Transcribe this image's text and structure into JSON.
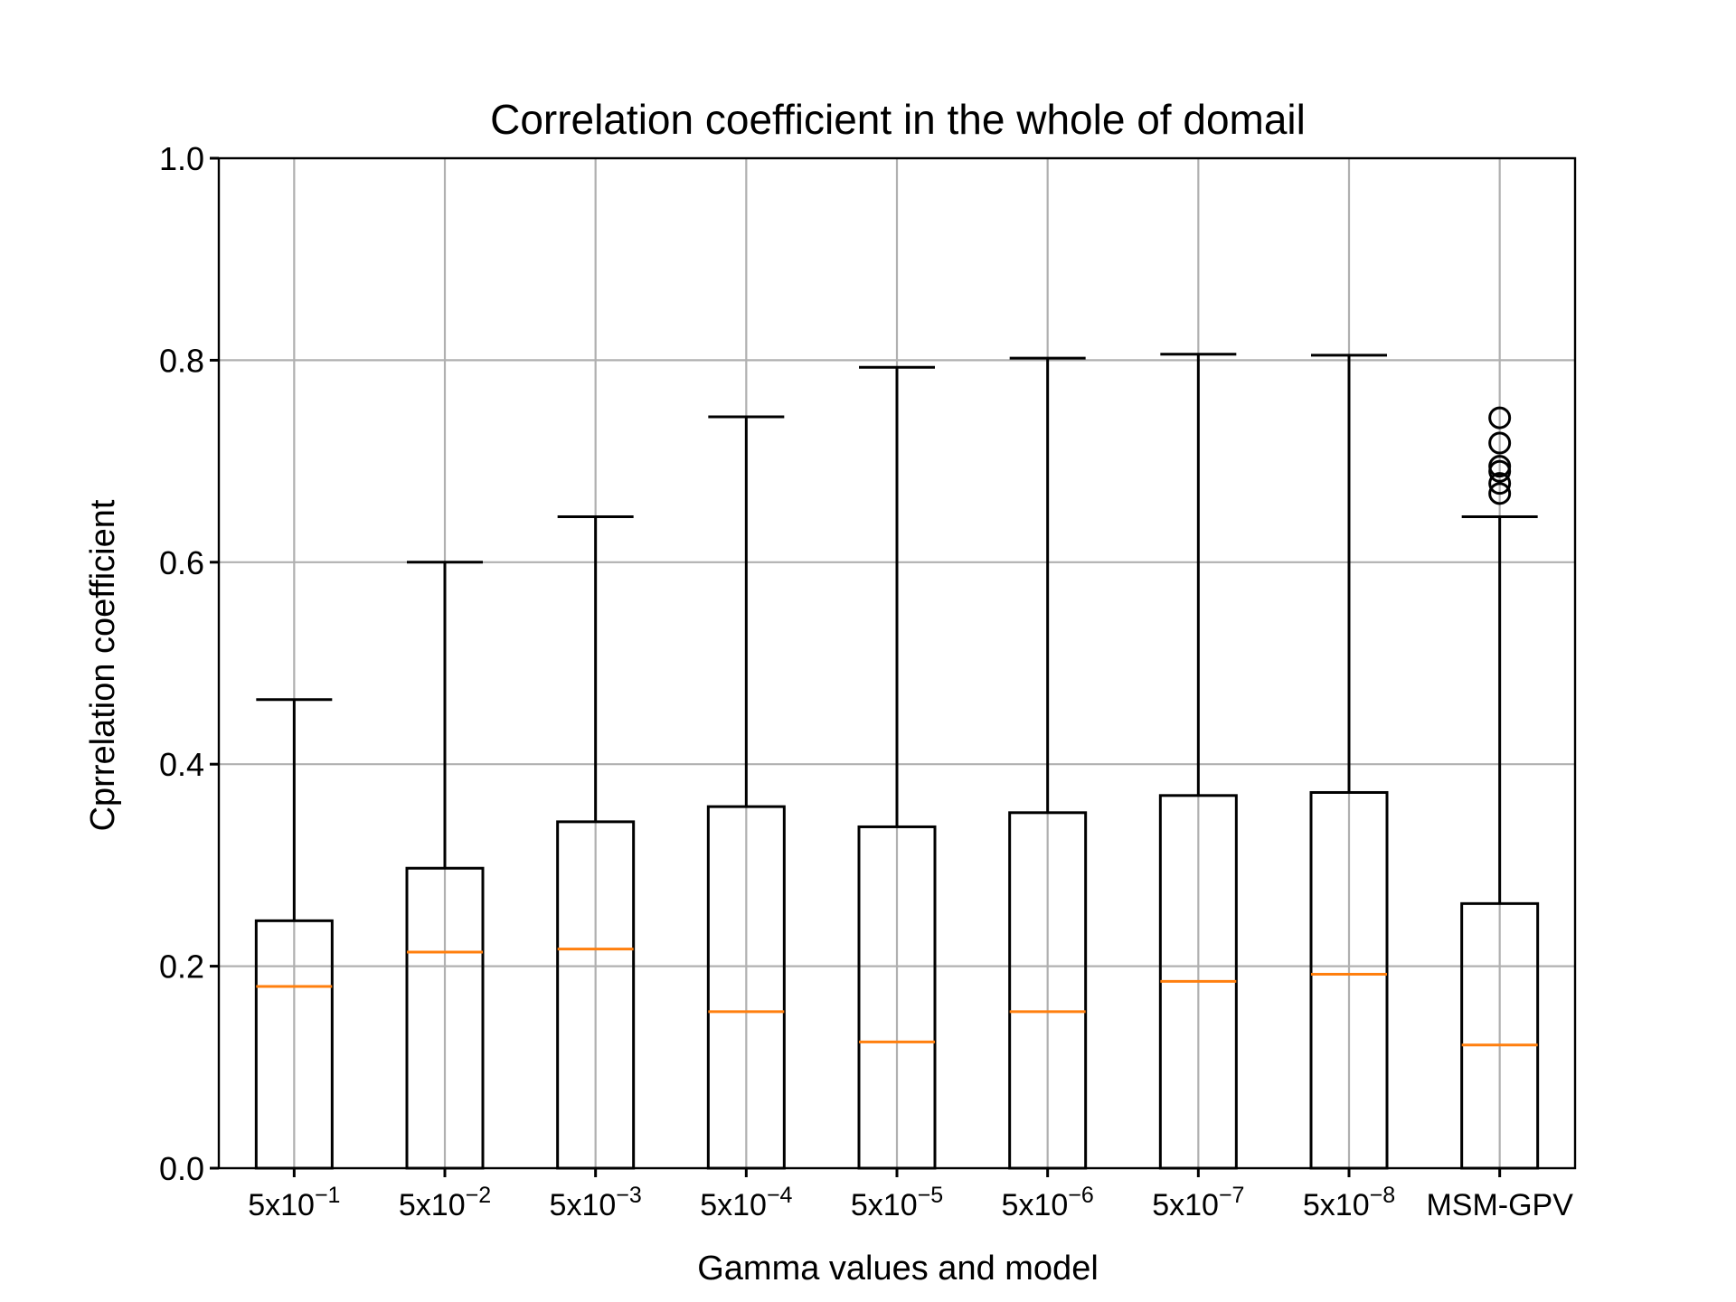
{
  "chart_data": {
    "type": "box",
    "title": "Correlation coefficient in the whole of domail",
    "xlabel": "Gamma values and model",
    "ylabel": "Cprrelation coefficient",
    "ylim": [
      0.0,
      1.0
    ],
    "yticks": [
      "0.0",
      "0.2",
      "0.4",
      "0.6",
      "0.8",
      "1.0"
    ],
    "grid": true,
    "categories": [
      {
        "base": "5x10",
        "exp": "−1"
      },
      {
        "base": "5x10",
        "exp": "−2"
      },
      {
        "base": "5x10",
        "exp": "−3"
      },
      {
        "base": "5x10",
        "exp": "−4"
      },
      {
        "base": "5x10",
        "exp": "−5"
      },
      {
        "base": "5x10",
        "exp": "−6"
      },
      {
        "base": "5x10",
        "exp": "−7"
      },
      {
        "base": "5x10",
        "exp": "−8"
      },
      {
        "base": "MSM-GPV",
        "exp": ""
      }
    ],
    "series": [
      {
        "whislo": 0.0,
        "q1": 0.0,
        "med": 0.18,
        "q3": 0.245,
        "whishi": 0.464,
        "fliers": []
      },
      {
        "whislo": 0.0,
        "q1": 0.0,
        "med": 0.214,
        "q3": 0.297,
        "whishi": 0.6,
        "fliers": []
      },
      {
        "whislo": 0.0,
        "q1": 0.0,
        "med": 0.217,
        "q3": 0.343,
        "whishi": 0.645,
        "fliers": []
      },
      {
        "whislo": 0.0,
        "q1": 0.0,
        "med": 0.155,
        "q3": 0.358,
        "whishi": 0.744,
        "fliers": []
      },
      {
        "whislo": 0.0,
        "q1": 0.0,
        "med": 0.125,
        "q3": 0.338,
        "whishi": 0.793,
        "fliers": []
      },
      {
        "whislo": 0.0,
        "q1": 0.0,
        "med": 0.155,
        "q3": 0.352,
        "whishi": 0.802,
        "fliers": []
      },
      {
        "whislo": 0.0,
        "q1": 0.0,
        "med": 0.185,
        "q3": 0.369,
        "whishi": 0.806,
        "fliers": []
      },
      {
        "whislo": 0.0,
        "q1": 0.0,
        "med": 0.192,
        "q3": 0.372,
        "whishi": 0.805,
        "fliers": []
      },
      {
        "whislo": 0.0,
        "q1": 0.0,
        "med": 0.122,
        "q3": 0.262,
        "whishi": 0.645,
        "fliers": [
          0.668,
          0.678,
          0.69,
          0.695,
          0.718,
          0.743
        ]
      }
    ],
    "colors": {
      "median": "#ff7f0e",
      "box": "#000000",
      "grid": "#b0b0b0"
    }
  }
}
